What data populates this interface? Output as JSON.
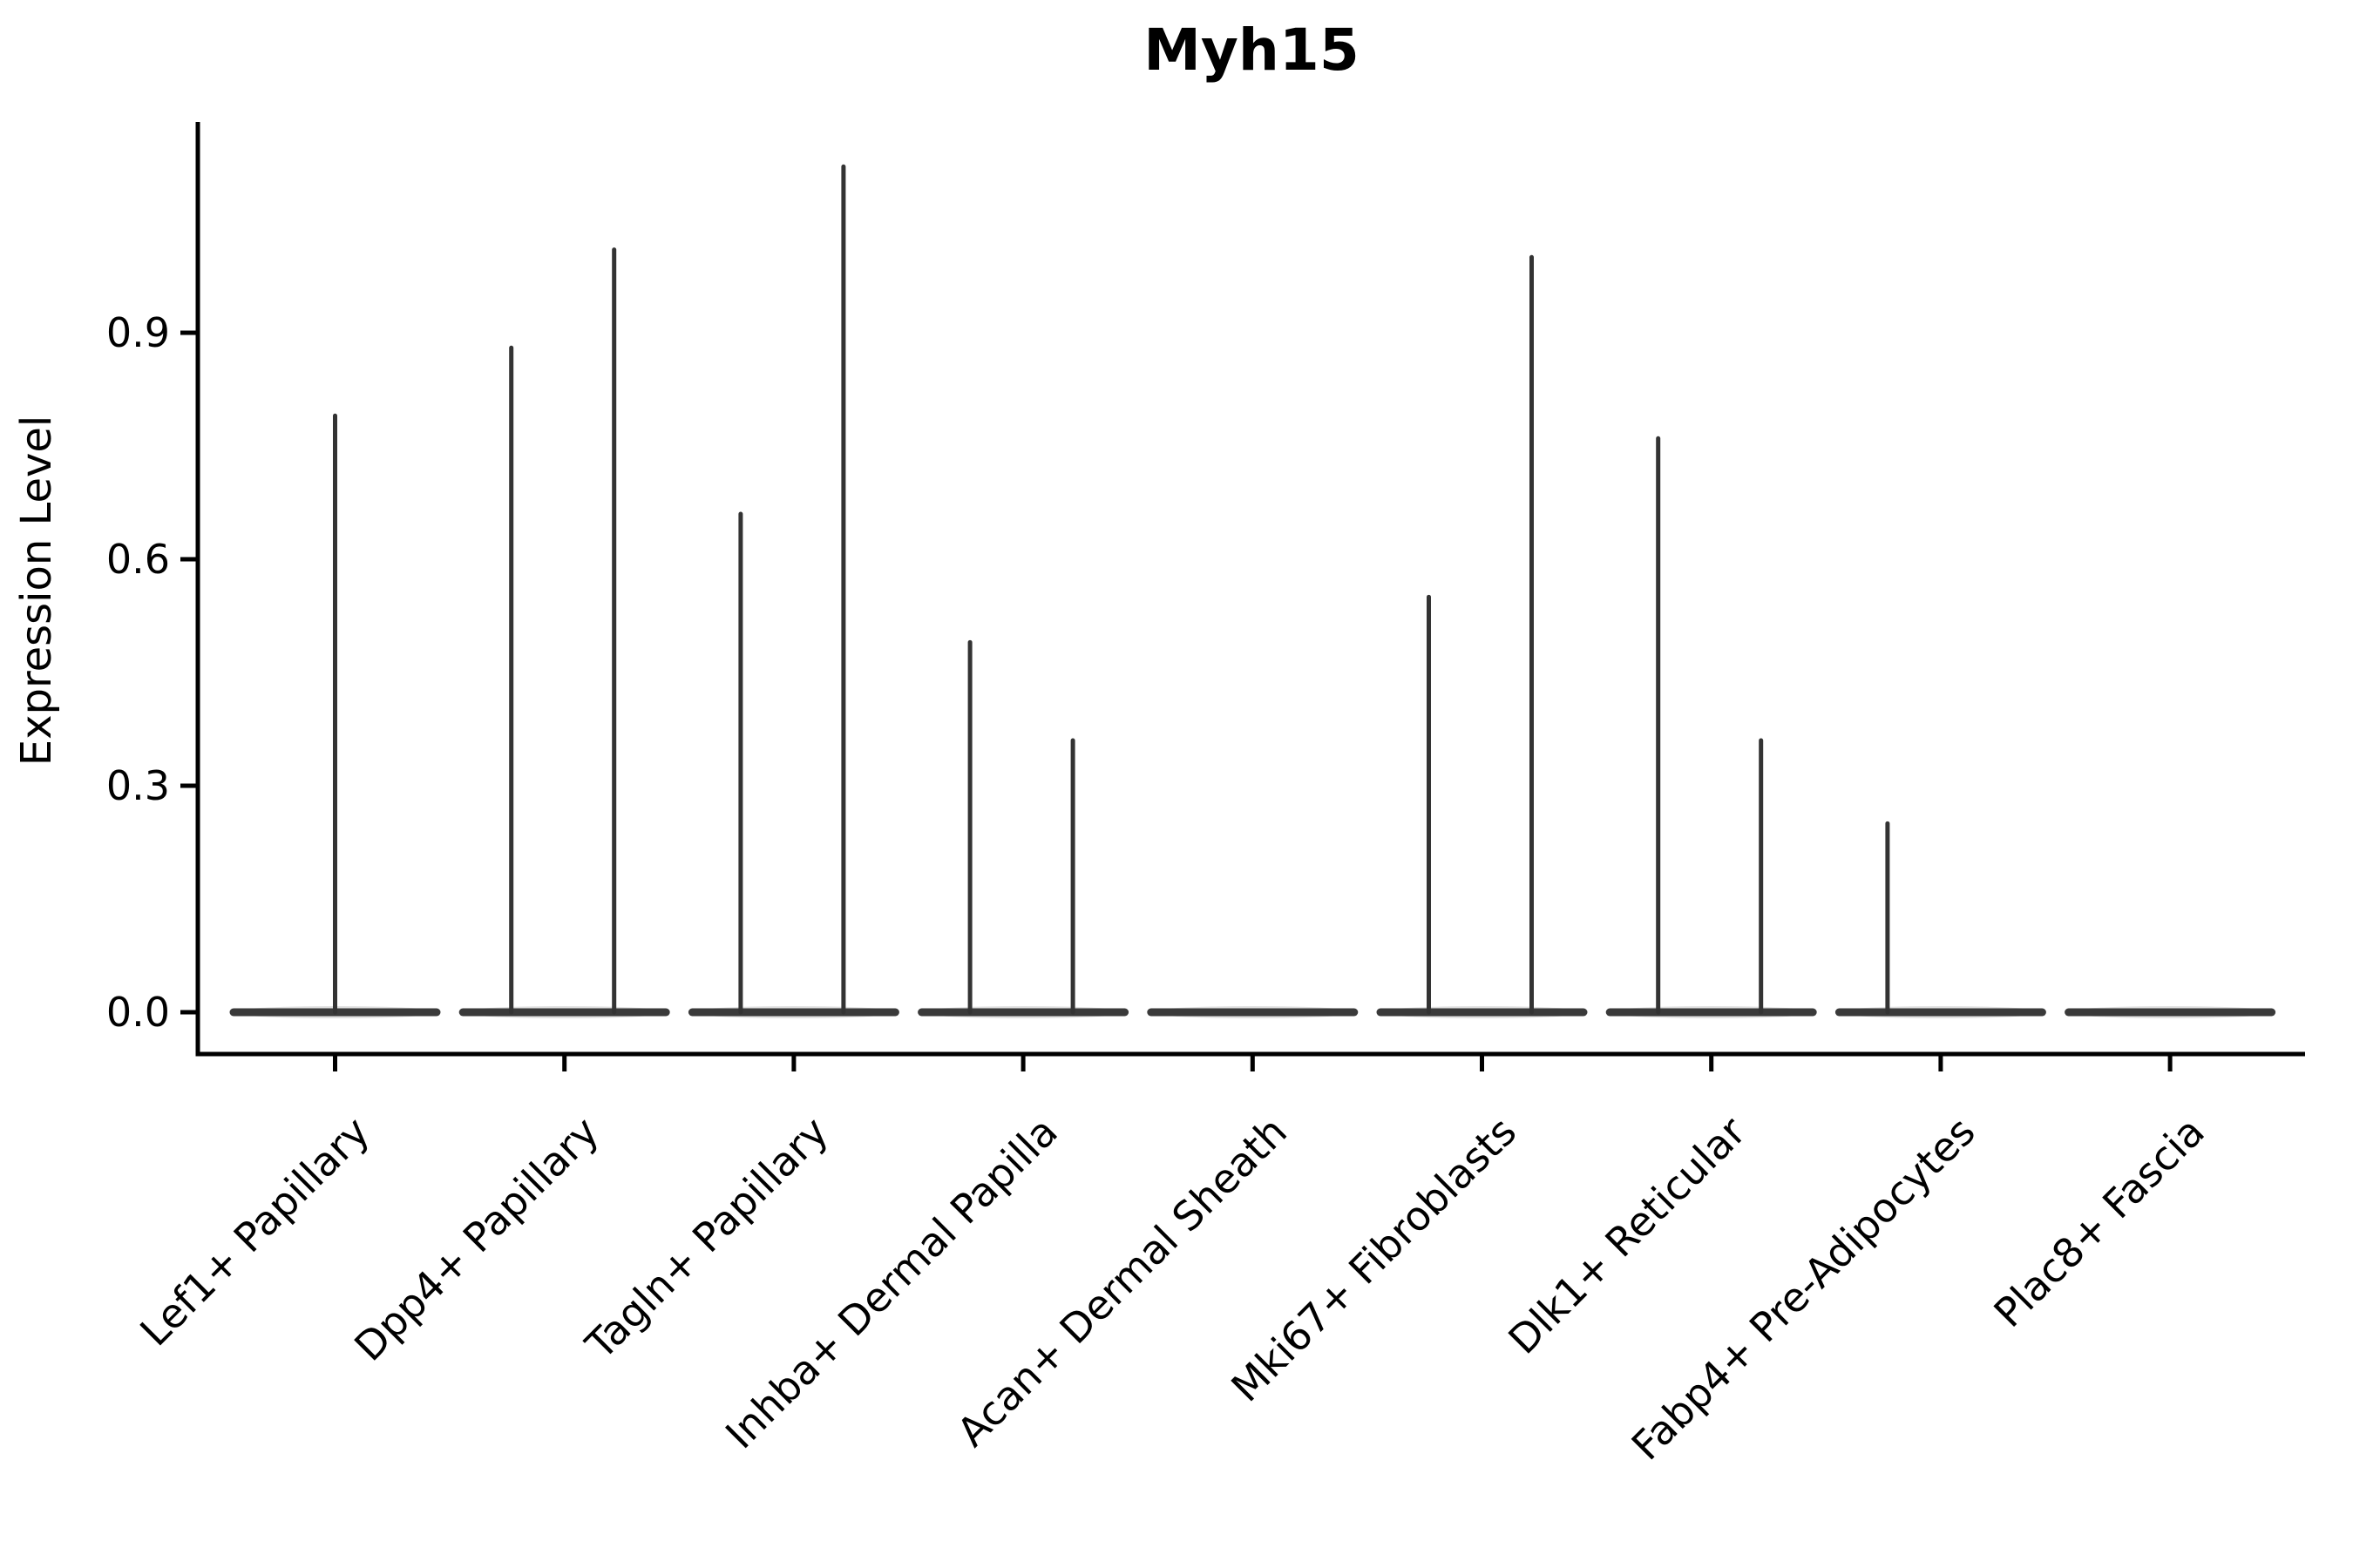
{
  "title": "Myh15",
  "y_axis": {
    "label": "Expression Level",
    "ticks": [
      {
        "label": "0.0",
        "value": 0.0
      },
      {
        "label": "0.3",
        "value": 0.3
      },
      {
        "label": "0.6",
        "value": 0.6
      },
      {
        "label": "0.9",
        "value": 0.9
      }
    ]
  },
  "x_axis": {
    "label": "",
    "categories": [
      "Lef1+ Papillary",
      "Dpp4+ Papillary",
      "Tagln+ Papillary",
      "Inhba+ Dermal Papilla",
      "Acan+ Dermal Sheath",
      "Mki67+ Fibroblasts",
      "Dlk1+ Reticular",
      "Fabp4+ Pre-Adipocytes",
      "Plac8+ Fascia"
    ]
  },
  "chart_data": {
    "type": "violin",
    "title": "Myh15",
    "xlabel": "",
    "ylabel": "Expression Level",
    "ylim": [
      -0.06,
      1.18
    ],
    "yticks": [
      0.0,
      0.3,
      0.6,
      0.9
    ],
    "grid": false,
    "legend_position": "none",
    "categories": [
      "Lef1+ Papillary",
      "Dpp4+ Papillary",
      "Tagln+ Papillary",
      "Inhba+ Dermal Papilla",
      "Acan+ Dermal Sheath",
      "Mki67+ Fibroblasts",
      "Dlk1+ Reticular",
      "Fabp4+ Pre-Adipocytes",
      "Plac8+ Fascia"
    ],
    "baseline_value": 0.0,
    "violins": [
      {
        "category": "Lef1+ Papillary",
        "bulk_at": 0.0,
        "spikes": [
          {
            "position": "center",
            "max": 0.79
          }
        ]
      },
      {
        "category": "Dpp4+ Papillary",
        "bulk_at": 0.0,
        "spikes": [
          {
            "position": "left",
            "max": 0.88
          },
          {
            "position": "right",
            "max": 1.01
          }
        ]
      },
      {
        "category": "Tagln+ Papillary",
        "bulk_at": 0.0,
        "spikes": [
          {
            "position": "left",
            "max": 0.66
          },
          {
            "position": "right",
            "max": 1.12
          }
        ]
      },
      {
        "category": "Inhba+ Dermal Papilla",
        "bulk_at": 0.0,
        "spikes": [
          {
            "position": "left",
            "max": 0.49
          },
          {
            "position": "right",
            "max": 0.36
          }
        ]
      },
      {
        "category": "Acan+ Dermal Sheath",
        "bulk_at": 0.0,
        "spikes": []
      },
      {
        "category": "Mki67+ Fibroblasts",
        "bulk_at": 0.0,
        "spikes": [
          {
            "position": "left",
            "max": 0.55
          },
          {
            "position": "right",
            "max": 1.0
          }
        ]
      },
      {
        "category": "Dlk1+ Reticular",
        "bulk_at": 0.0,
        "spikes": [
          {
            "position": "left",
            "max": 0.76
          },
          {
            "position": "right",
            "max": 0.36
          }
        ]
      },
      {
        "category": "Fabp4+ Pre-Adipocytes",
        "bulk_at": 0.0,
        "spikes": [
          {
            "position": "left",
            "max": 0.25
          }
        ]
      },
      {
        "category": "Plac8+ Fascia",
        "bulk_at": 0.0,
        "spikes": []
      }
    ],
    "max_expression_per_category": [
      0.79,
      1.01,
      1.12,
      0.49,
      0.0,
      1.0,
      0.76,
      0.25,
      0.0
    ]
  },
  "colors": {
    "background": "#ffffff",
    "axis": "#000000",
    "violin_edge": "#333333",
    "violin_base_bar": "#3a3a3a",
    "violin_fill": "#c9c9c9",
    "text": "#000000"
  }
}
